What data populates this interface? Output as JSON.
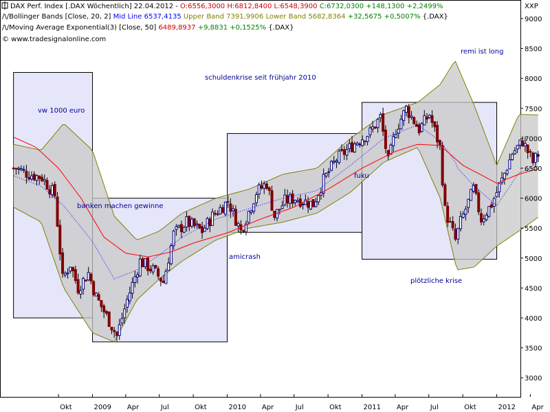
{
  "header": {
    "line1": {
      "title": "DAX Perf. Index [.DAX  Wöchentlich] 22.04.2012 - ",
      "ohlc": "O:6556,3000 H:6812,8400 L:6548,3900",
      "close": " C:6732,0300 +148,1300 +2,2499%"
    },
    "line2": {
      "label": "Bollinger Bands [Close, 20, 2]",
      "mid": " Mid Line 6537,4135",
      "upper": " Upper Band 7391,9906",
      "lower": " Lower Band 5682,8364",
      "change": " +32,5675 +0,5007%",
      "suffix": " {.DAX}"
    },
    "line3": {
      "label": "Moving Average Exponential(3) [Close, 50]",
      "value": " 6489,8937",
      "change": " +9,8831 +0,1525%",
      "suffix": " {.DAX}"
    },
    "line4": "© www.tradesignalonline.com"
  },
  "colors": {
    "background": "#ffffff",
    "box_fill": "#e6e6fa",
    "band_fill": "#c8c8c8",
    "band_line": "#808000",
    "ma_line": "#ff0000",
    "mid_line": "#0000ff",
    "candle_up": "#000080",
    "candle_down": "#800000",
    "annotation": "#000099",
    "header_title": "#000000",
    "header_open": "#cc0000",
    "header_green": "#008000",
    "header_upper": "#808000"
  },
  "annotations": [
    {
      "id": "remi",
      "text": "remi ist long"
    },
    {
      "id": "schulden",
      "text": "schuldenkrise seit frühjahr 2010"
    },
    {
      "id": "vw",
      "text": "vw 1000 euro"
    },
    {
      "id": "banken",
      "text": "banken machen gewinne"
    },
    {
      "id": "amicrash",
      "text": "amicrash"
    },
    {
      "id": "fuku",
      "text": "fuku"
    },
    {
      "id": "ploetzlich",
      "text": "plötzliche krise"
    }
  ],
  "chart_data": {
    "type": "candlestick",
    "title": "DAX Perf. Index [.DAX  Wöchentlich]",
    "y_axis_unit": "XXP",
    "ylim": [
      2700,
      9200
    ],
    "y_ticks": [
      3000,
      3500,
      4000,
      4500,
      5000,
      5500,
      6000,
      6500,
      7000,
      7500,
      8000,
      8500,
      9000
    ],
    "x_range": [
      "2008-06",
      "2012-05"
    ],
    "x_ticks": [
      {
        "label": "Okt",
        "date": "2008-10"
      },
      {
        "label": "2009",
        "date": "2009-01"
      },
      {
        "label": "Apr",
        "date": "2009-04"
      },
      {
        "label": "Jul",
        "date": "2009-07"
      },
      {
        "label": "Okt",
        "date": "2009-10"
      },
      {
        "label": "2010",
        "date": "2010-01"
      },
      {
        "label": "Apr",
        "date": "2010-04"
      },
      {
        "label": "Jul",
        "date": "2010-07"
      },
      {
        "label": "Okt",
        "date": "2010-10"
      },
      {
        "label": "2011",
        "date": "2011-01"
      },
      {
        "label": "Apr",
        "date": "2011-04"
      },
      {
        "label": "Jul",
        "date": "2011-07"
      },
      {
        "label": "Okt",
        "date": "2011-10"
      },
      {
        "label": "2012",
        "date": "2012-01"
      },
      {
        "label": "Apr",
        "date": "2012-04"
      }
    ],
    "close_path": [
      {
        "date": "2008-06-08",
        "close": 6500
      },
      {
        "date": "2008-07-13",
        "close": 6400
      },
      {
        "date": "2008-08-17",
        "close": 6350
      },
      {
        "date": "2008-09-21",
        "close": 6050
      },
      {
        "date": "2008-10-12",
        "close": 4650
      },
      {
        "date": "2008-11-02",
        "close": 4900
      },
      {
        "date": "2008-11-23",
        "close": 4500
      },
      {
        "date": "2008-12-21",
        "close": 4750
      },
      {
        "date": "2009-01-11",
        "close": 4350
      },
      {
        "date": "2009-02-15",
        "close": 3950
      },
      {
        "date": "2009-03-08",
        "close": 3700
      },
      {
        "date": "2009-04-05",
        "close": 4300
      },
      {
        "date": "2009-05-10",
        "close": 4950
      },
      {
        "date": "2009-06-14",
        "close": 4800
      },
      {
        "date": "2009-07-12",
        "close": 4600
      },
      {
        "date": "2009-08-09",
        "close": 5400
      },
      {
        "date": "2009-09-13",
        "close": 5600
      },
      {
        "date": "2009-10-25",
        "close": 5450
      },
      {
        "date": "2009-11-22",
        "close": 5700
      },
      {
        "date": "2010-01-03",
        "close": 5950
      },
      {
        "date": "2010-02-07",
        "close": 5450
      },
      {
        "date": "2010-03-21",
        "close": 6100
      },
      {
        "date": "2010-04-18",
        "close": 6250
      },
      {
        "date": "2010-05-09",
        "close": 5700
      },
      {
        "date": "2010-06-06",
        "close": 5950
      },
      {
        "date": "2010-07-04",
        "close": 6000
      },
      {
        "date": "2010-08-22",
        "close": 5900
      },
      {
        "date": "2010-09-19",
        "close": 6300
      },
      {
        "date": "2010-10-24",
        "close": 6650
      },
      {
        "date": "2010-11-21",
        "close": 6800
      },
      {
        "date": "2010-12-19",
        "close": 6950
      },
      {
        "date": "2011-01-23",
        "close": 7100
      },
      {
        "date": "2011-02-20",
        "close": 7350
      },
      {
        "date": "2011-03-13",
        "close": 6600
      },
      {
        "date": "2011-04-03",
        "close": 7150
      },
      {
        "date": "2011-05-01",
        "close": 7500
      },
      {
        "date": "2011-06-05",
        "close": 7150
      },
      {
        "date": "2011-07-03",
        "close": 7400
      },
      {
        "date": "2011-07-31",
        "close": 6850
      },
      {
        "date": "2011-08-14",
        "close": 5800
      },
      {
        "date": "2011-09-11",
        "close": 5300
      },
      {
        "date": "2011-09-25",
        "close": 5600
      },
      {
        "date": "2011-10-30",
        "close": 6150
      },
      {
        "date": "2011-11-20",
        "close": 5650
      },
      {
        "date": "2011-12-18",
        "close": 5900
      },
      {
        "date": "2012-01-15",
        "close": 6300
      },
      {
        "date": "2012-02-12",
        "close": 6750
      },
      {
        "date": "2012-03-11",
        "close": 6950
      },
      {
        "date": "2012-04-08",
        "close": 6600
      },
      {
        "date": "2012-04-22",
        "close": 6732
      }
    ],
    "ma50_path": [
      {
        "date": "2008-06-01",
        "value": 7020
      },
      {
        "date": "2008-08-01",
        "value": 6850
      },
      {
        "date": "2008-10-01",
        "value": 6500
      },
      {
        "date": "2008-12-01",
        "value": 6000
      },
      {
        "date": "2009-02-01",
        "value": 5350
      },
      {
        "date": "2009-04-01",
        "value": 5080
      },
      {
        "date": "2009-06-01",
        "value": 5020
      },
      {
        "date": "2009-08-01",
        "value": 5100
      },
      {
        "date": "2009-10-01",
        "value": 5250
      },
      {
        "date": "2010-01-01",
        "value": 5420
      },
      {
        "date": "2010-04-01",
        "value": 5650
      },
      {
        "date": "2010-07-01",
        "value": 5850
      },
      {
        "date": "2010-10-01",
        "value": 6150
      },
      {
        "date": "2011-01-01",
        "value": 6500
      },
      {
        "date": "2011-04-01",
        "value": 6780
      },
      {
        "date": "2011-06-01",
        "value": 6900
      },
      {
        "date": "2011-08-01",
        "value": 6880
      },
      {
        "date": "2011-10-01",
        "value": 6550
      },
      {
        "date": "2012-01-01",
        "value": 6250
      },
      {
        "date": "2012-03-01",
        "value": 6400
      },
      {
        "date": "2012-04-22",
        "value": 6490
      }
    ],
    "bollinger": {
      "period": 20,
      "stddev": 2,
      "last": {
        "mid": 6537.41,
        "upper": 7391.99,
        "lower": 5682.84
      },
      "upper_path": [
        {
          "date": "2008-06-01",
          "value": 6900
        },
        {
          "date": "2008-08-15",
          "value": 6800
        },
        {
          "date": "2008-10-15",
          "value": 7250
        },
        {
          "date": "2009-01-01",
          "value": 6800
        },
        {
          "date": "2009-03-01",
          "value": 5700
        },
        {
          "date": "2009-05-01",
          "value": 5300
        },
        {
          "date": "2009-07-01",
          "value": 5450
        },
        {
          "date": "2009-09-01",
          "value": 5750
        },
        {
          "date": "2009-12-01",
          "value": 6000
        },
        {
          "date": "2010-03-01",
          "value": 6150
        },
        {
          "date": "2010-06-01",
          "value": 6400
        },
        {
          "date": "2010-09-01",
          "value": 6500
        },
        {
          "date": "2010-12-01",
          "value": 7000
        },
        {
          "date": "2011-03-01",
          "value": 7400
        },
        {
          "date": "2011-06-01",
          "value": 7600
        },
        {
          "date": "2011-08-01",
          "value": 7900
        },
        {
          "date": "2011-09-10",
          "value": 8300
        },
        {
          "date": "2011-11-01",
          "value": 7550
        },
        {
          "date": "2012-01-01",
          "value": 6550
        },
        {
          "date": "2012-03-01",
          "value": 7400
        },
        {
          "date": "2012-04-22",
          "value": 7390
        }
      ],
      "lower_path": [
        {
          "date": "2008-06-01",
          "value": 5850
        },
        {
          "date": "2008-08-15",
          "value": 5600
        },
        {
          "date": "2008-10-15",
          "value": 4500
        },
        {
          "date": "2009-01-01",
          "value": 3750
        },
        {
          "date": "2009-03-01",
          "value": 3600
        },
        {
          "date": "2009-05-01",
          "value": 4300
        },
        {
          "date": "2009-07-01",
          "value": 4650
        },
        {
          "date": "2009-09-01",
          "value": 4950
        },
        {
          "date": "2009-12-01",
          "value": 5300
        },
        {
          "date": "2010-03-01",
          "value": 5500
        },
        {
          "date": "2010-06-01",
          "value": 5600
        },
        {
          "date": "2010-09-01",
          "value": 5750
        },
        {
          "date": "2010-12-01",
          "value": 6100
        },
        {
          "date": "2011-03-01",
          "value": 6600
        },
        {
          "date": "2011-06-01",
          "value": 6850
        },
        {
          "date": "2011-08-01",
          "value": 6000
        },
        {
          "date": "2011-09-15",
          "value": 4800
        },
        {
          "date": "2011-11-01",
          "value": 4850
        },
        {
          "date": "2012-01-01",
          "value": 5200
        },
        {
          "date": "2012-03-01",
          "value": 5450
        },
        {
          "date": "2012-04-22",
          "value": 5680
        }
      ]
    },
    "highlight_ranges": [
      {
        "start": "2008-06-01",
        "end": "2009-01-01",
        "low": 4000,
        "high": 8100
      },
      {
        "start": "2009-01-01",
        "end": "2010-01-01",
        "low": 3600,
        "high": 6000
      },
      {
        "start": "2010-01-01",
        "end": "2011-01-01",
        "low": 5430,
        "high": 7080
      },
      {
        "start": "2011-01-01",
        "end": "2012-01-01",
        "low": 4980,
        "high": 7600
      }
    ],
    "grid": false,
    "legend": "top-left"
  }
}
